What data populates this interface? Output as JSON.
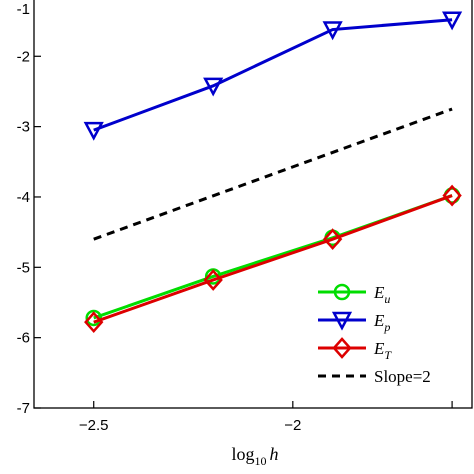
{
  "chart_data": {
    "type": "line",
    "title": "",
    "xlabel": "log10 h",
    "xlabel_main": "log",
    "xlabel_sub": "10",
    "xlabel_var": "h",
    "ylabel": "",
    "xlim": [
      -2.65,
      -1.55
    ],
    "ylim": [
      -7,
      -1.2
    ],
    "x_ticks": [
      -2.5,
      -2,
      -1.6
    ],
    "x_tick_labels": [
      "−2.5",
      "−2",
      ""
    ],
    "y_ticks": [
      -2,
      -3,
      -4,
      -5,
      -6,
      -7
    ],
    "y_tick_labels": [
      "-2",
      "-3",
      "-4",
      "-5",
      "-6",
      "-7"
    ],
    "grid": false,
    "legend_position": "bottom-right",
    "series": [
      {
        "name": "Eu",
        "name_base": "E",
        "name_sub": "u",
        "color": "#00dd00",
        "marker": "circle",
        "x": [
          -2.5,
          -2.2,
          -1.9,
          -1.6
        ],
        "y": [
          -5.72,
          -5.13,
          -4.58,
          -3.98
        ]
      },
      {
        "name": "Ep",
        "name_base": "E",
        "name_sub": "p",
        "color": "#0000cc",
        "marker": "triangle-down",
        "x": [
          -2.5,
          -2.2,
          -1.9,
          -1.6
        ],
        "y": [
          -3.05,
          -2.42,
          -1.62,
          -1.48
        ]
      },
      {
        "name": "ET",
        "name_base": "E",
        "name_sub": "T",
        "color": "#dd0000",
        "marker": "diamond",
        "x": [
          -2.5,
          -2.2,
          -1.9,
          -1.6
        ],
        "y": [
          -5.78,
          -5.18,
          -4.6,
          -3.98
        ]
      },
      {
        "name": "Slope=2",
        "color": "#000000",
        "dashed": true,
        "marker": "none",
        "x": [
          -2.5,
          -1.6
        ],
        "y": [
          -4.6,
          -2.75
        ]
      }
    ]
  }
}
